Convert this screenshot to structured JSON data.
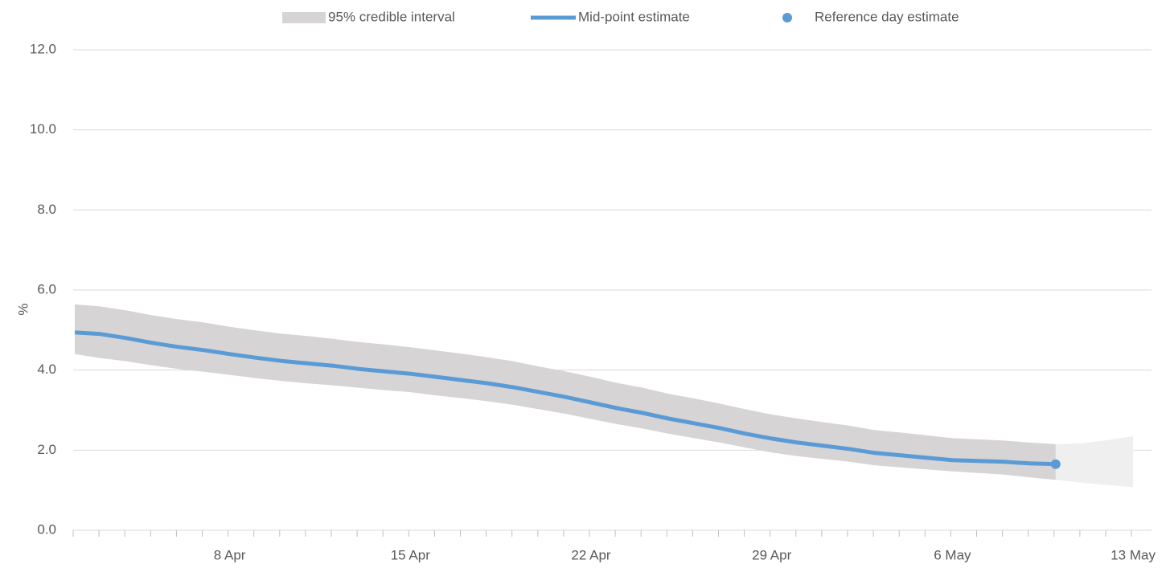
{
  "chart_data": {
    "type": "line",
    "y_label": "%",
    "ylim": [
      0,
      12
    ],
    "yticks": [
      {
        "value": 0,
        "label": "0.0"
      },
      {
        "value": 2,
        "label": "2.0"
      },
      {
        "value": 4,
        "label": "4.0"
      },
      {
        "value": 6,
        "label": "6.0"
      },
      {
        "value": 8,
        "label": "8.0"
      },
      {
        "value": 10,
        "label": "10.0"
      },
      {
        "value": 12,
        "label": "12.0"
      }
    ],
    "grid": true,
    "legend": "top",
    "categories": [
      null,
      null,
      null,
      null,
      null,
      null,
      "8 Apr",
      null,
      null,
      null,
      null,
      null,
      null,
      "15 Apr",
      null,
      null,
      null,
      null,
      null,
      null,
      "22 Apr",
      null,
      null,
      null,
      null,
      null,
      null,
      "29 Apr",
      null,
      null,
      null,
      null,
      null,
      null,
      "6 May",
      null,
      null,
      null,
      null,
      null,
      null,
      "13 May"
    ],
    "band": {
      "name": "95% credible interval",
      "color": "#d6d4d5",
      "upper": [
        5.64,
        5.59,
        5.49,
        5.37,
        5.27,
        5.19,
        5.08,
        4.99,
        4.91,
        4.85,
        4.78,
        4.7,
        4.64,
        4.57,
        4.49,
        4.41,
        4.32,
        4.22,
        4.09,
        3.97,
        3.83,
        3.68,
        3.56,
        3.41,
        3.29,
        3.16,
        3.02,
        2.89,
        2.79,
        2.7,
        2.61,
        2.5,
        2.44,
        2.37,
        2.3,
        2.27,
        2.24,
        2.19,
        2.15,
        null,
        null,
        null
      ],
      "lower": [
        4.4,
        4.3,
        4.22,
        4.12,
        4.03,
        3.96,
        3.88,
        3.8,
        3.73,
        3.67,
        3.62,
        3.56,
        3.5,
        3.45,
        3.37,
        3.3,
        3.22,
        3.13,
        3.02,
        2.91,
        2.78,
        2.65,
        2.54,
        2.41,
        2.3,
        2.19,
        2.06,
        1.94,
        1.85,
        1.78,
        1.71,
        1.62,
        1.57,
        1.52,
        1.47,
        1.43,
        1.39,
        1.32,
        1.26,
        null,
        null,
        null
      ]
    },
    "band_extension": {
      "color": "#efefef",
      "upper": [
        null,
        null,
        null,
        null,
        null,
        null,
        null,
        null,
        null,
        null,
        null,
        null,
        null,
        null,
        null,
        null,
        null,
        null,
        null,
        null,
        null,
        null,
        null,
        null,
        null,
        null,
        null,
        null,
        null,
        null,
        null,
        null,
        null,
        null,
        null,
        null,
        null,
        null,
        2.15,
        2.17,
        2.25,
        2.35
      ],
      "lower": [
        null,
        null,
        null,
        null,
        null,
        null,
        null,
        null,
        null,
        null,
        null,
        null,
        null,
        null,
        null,
        null,
        null,
        null,
        null,
        null,
        null,
        null,
        null,
        null,
        null,
        null,
        null,
        null,
        null,
        null,
        null,
        null,
        null,
        null,
        null,
        null,
        null,
        null,
        1.26,
        1.19,
        1.13,
        1.08
      ]
    },
    "series": [
      {
        "name": "Mid-point estimate",
        "color": "#5b9bd5",
        "values": [
          4.94,
          4.9,
          4.8,
          4.68,
          4.58,
          4.5,
          4.4,
          4.31,
          4.23,
          4.17,
          4.11,
          4.03,
          3.97,
          3.91,
          3.83,
          3.75,
          3.67,
          3.57,
          3.45,
          3.33,
          3.19,
          3.05,
          2.93,
          2.79,
          2.67,
          2.55,
          2.41,
          2.29,
          2.19,
          2.11,
          2.03,
          1.93,
          1.87,
          1.81,
          1.75,
          1.73,
          1.71,
          1.67,
          1.65,
          null,
          null,
          null
        ]
      },
      {
        "name": "Reference day estimate",
        "color": "#5b9bd5",
        "marker": "dot",
        "values": [
          null,
          null,
          null,
          null,
          null,
          null,
          null,
          null,
          null,
          null,
          null,
          null,
          null,
          null,
          null,
          null,
          null,
          null,
          null,
          null,
          null,
          null,
          null,
          null,
          null,
          null,
          null,
          null,
          null,
          null,
          null,
          null,
          null,
          null,
          null,
          null,
          null,
          null,
          1.65,
          null,
          null,
          null
        ]
      }
    ]
  }
}
